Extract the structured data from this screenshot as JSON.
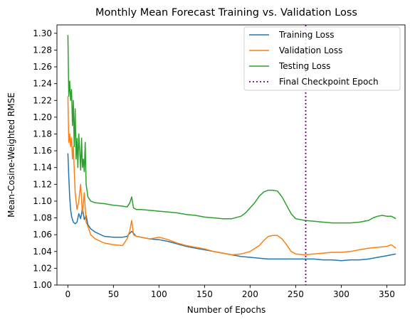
{
  "chart_data": {
    "type": "line",
    "title": "Monthly Mean Forecast Training vs. Validation Loss",
    "xlabel": "Number of Epochs",
    "ylabel": "Mean-Cosine-Weighted RMSE",
    "xlim": [
      -12,
      370
    ],
    "ylim": [
      1.0,
      1.31
    ],
    "xticks": [
      0,
      50,
      100,
      150,
      200,
      250,
      300,
      350
    ],
    "yticks": [
      1.0,
      1.02,
      1.04,
      1.06,
      1.08,
      1.1,
      1.12,
      1.14,
      1.16,
      1.18,
      1.2,
      1.22,
      1.24,
      1.26,
      1.28,
      1.3
    ],
    "ytick_labels": [
      "1.00",
      "1.02",
      "1.04",
      "1.06",
      "1.08",
      "1.10",
      "1.12",
      "1.14",
      "1.16",
      "1.18",
      "1.20",
      "1.22",
      "1.24",
      "1.26",
      "1.28",
      "1.30"
    ],
    "grid": false,
    "legend_position": "top-right",
    "series": [
      {
        "name": "Training Loss",
        "color": "#1f77b4",
        "style": "solid",
        "x": [
          0,
          1,
          2,
          3,
          4,
          5,
          6,
          8,
          10,
          12,
          14,
          16,
          18,
          20,
          22,
          25,
          30,
          40,
          50,
          60,
          65,
          70,
          75,
          80,
          90,
          100,
          110,
          120,
          130,
          140,
          150,
          160,
          170,
          180,
          190,
          200,
          210,
          220,
          230,
          240,
          250,
          260,
          270,
          280,
          290,
          300,
          310,
          320,
          330,
          340,
          350,
          355,
          360
        ],
        "y": [
          1.157,
          1.13,
          1.105,
          1.09,
          1.082,
          1.078,
          1.075,
          1.073,
          1.075,
          1.085,
          1.079,
          1.092,
          1.078,
          1.083,
          1.072,
          1.067,
          1.063,
          1.058,
          1.057,
          1.057,
          1.058,
          1.064,
          1.058,
          1.057,
          1.055,
          1.054,
          1.052,
          1.049,
          1.046,
          1.044,
          1.042,
          1.04,
          1.038,
          1.036,
          1.034,
          1.033,
          1.032,
          1.031,
          1.031,
          1.031,
          1.031,
          1.031,
          1.031,
          1.03,
          1.03,
          1.029,
          1.03,
          1.03,
          1.031,
          1.033,
          1.035,
          1.036,
          1.037
        ]
      },
      {
        "name": "Validation Loss",
        "color": "#ff7f0e",
        "style": "solid",
        "x": [
          0,
          1,
          2,
          3,
          4,
          5,
          6,
          8,
          10,
          12,
          14,
          16,
          18,
          20,
          22,
          25,
          30,
          40,
          50,
          60,
          65,
          68,
          70,
          72,
          75,
          80,
          90,
          100,
          110,
          120,
          130,
          140,
          150,
          160,
          170,
          180,
          190,
          200,
          210,
          215,
          220,
          225,
          230,
          235,
          240,
          245,
          250,
          260,
          270,
          280,
          290,
          300,
          310,
          320,
          330,
          340,
          350,
          355,
          360
        ],
        "y": [
          1.225,
          1.17,
          1.18,
          1.165,
          1.175,
          1.15,
          1.165,
          1.11,
          1.09,
          1.1,
          1.12,
          1.085,
          1.11,
          1.075,
          1.07,
          1.06,
          1.055,
          1.05,
          1.048,
          1.047,
          1.055,
          1.065,
          1.077,
          1.06,
          1.058,
          1.057,
          1.055,
          1.057,
          1.054,
          1.05,
          1.047,
          1.045,
          1.043,
          1.04,
          1.038,
          1.036,
          1.037,
          1.04,
          1.047,
          1.053,
          1.058,
          1.059,
          1.059,
          1.055,
          1.048,
          1.04,
          1.037,
          1.036,
          1.037,
          1.038,
          1.039,
          1.039,
          1.04,
          1.042,
          1.044,
          1.045,
          1.046,
          1.048,
          1.044
        ]
      },
      {
        "name": "Testing Loss",
        "color": "#2ca02c",
        "style": "solid",
        "x": [
          0,
          1,
          2,
          3,
          4,
          5,
          6,
          7,
          8,
          9,
          10,
          11,
          12,
          13,
          14,
          15,
          16,
          17,
          18,
          19,
          20,
          22,
          25,
          30,
          40,
          50,
          60,
          65,
          68,
          70,
          72,
          75,
          80,
          90,
          100,
          110,
          120,
          130,
          140,
          150,
          160,
          170,
          180,
          190,
          195,
          200,
          205,
          210,
          215,
          220,
          225,
          230,
          235,
          240,
          245,
          250,
          260,
          270,
          280,
          290,
          300,
          310,
          320,
          330,
          335,
          340,
          345,
          350,
          355,
          360
        ],
        "y": [
          1.298,
          1.225,
          1.243,
          1.22,
          1.233,
          1.19,
          1.22,
          1.165,
          1.21,
          1.15,
          1.175,
          1.14,
          1.18,
          1.16,
          1.137,
          1.175,
          1.14,
          1.15,
          1.135,
          1.17,
          1.12,
          1.105,
          1.1,
          1.098,
          1.097,
          1.095,
          1.094,
          1.093,
          1.098,
          1.105,
          1.092,
          1.09,
          1.09,
          1.089,
          1.088,
          1.087,
          1.086,
          1.084,
          1.083,
          1.081,
          1.08,
          1.079,
          1.079,
          1.082,
          1.086,
          1.092,
          1.098,
          1.106,
          1.111,
          1.113,
          1.113,
          1.112,
          1.105,
          1.095,
          1.085,
          1.079,
          1.077,
          1.076,
          1.075,
          1.074,
          1.074,
          1.074,
          1.075,
          1.077,
          1.08,
          1.082,
          1.083,
          1.082,
          1.082,
          1.079
        ]
      },
      {
        "name": "Final Checkpoint Epoch",
        "color": "#800080",
        "style": "dotted",
        "vline_x": 261
      }
    ]
  }
}
